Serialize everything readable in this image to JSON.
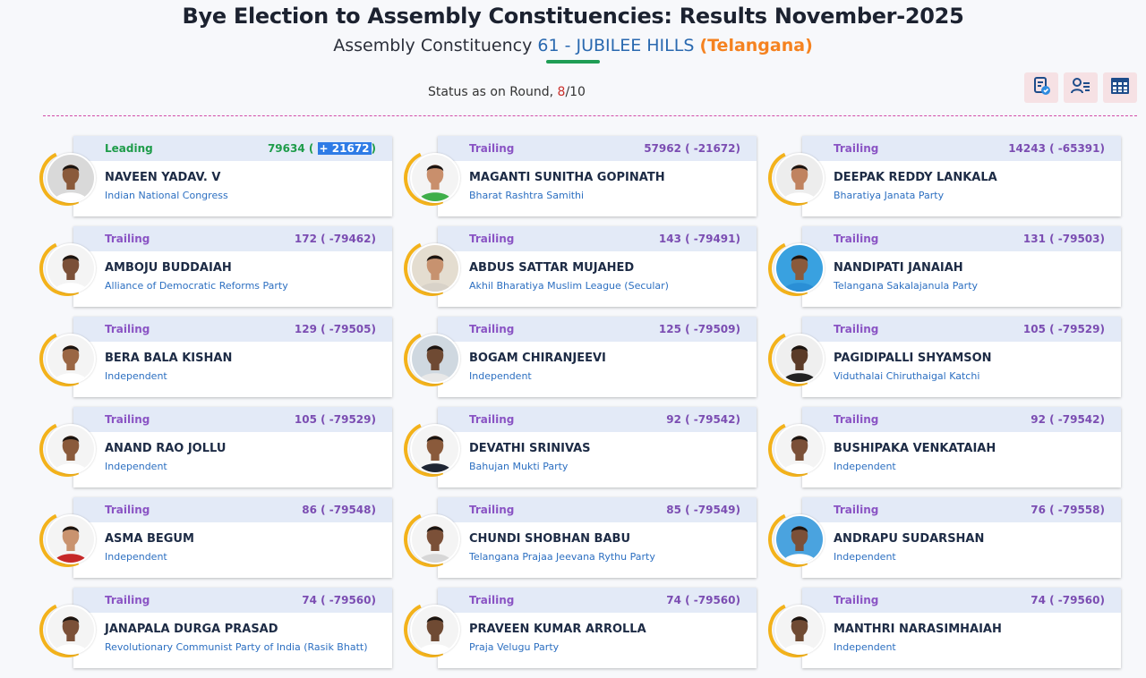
{
  "header": {
    "title": "Bye Election to Assembly Constituencies: Results November-2025",
    "ac_prefix": "Assembly Constituency",
    "ac_name": "61 - JUBILEE HILLS",
    "ac_state": "(Telangana)"
  },
  "status": {
    "prefix": "Status as on Round,",
    "round_current": "8",
    "round_total": "/10"
  },
  "toolbar": {
    "icons": [
      "round-wise-icon",
      "candidate-list-icon",
      "table-view-icon"
    ]
  },
  "candidates": [
    {
      "status": "Leading",
      "votes": "79634",
      "margin": "+ 21672",
      "name": "NAVEEN YADAV. V",
      "party": "Indian National Congress",
      "skin": "#8a5a3b",
      "shirt": "#ffffff",
      "bg": "#d9d9d9"
    },
    {
      "status": "Trailing",
      "votes": "57962",
      "margin": "-21672",
      "name": "MAGANTI SUNITHA GOPINATH",
      "party": "Bharat Rashtra Samithi",
      "skin": "#c98f6c",
      "shirt": "#3fae49",
      "bg": "#f4f4f4"
    },
    {
      "status": "Trailing",
      "votes": "14243",
      "margin": "-65391",
      "name": "DEEPAK REDDY LANKALA",
      "party": "Bharatiya Janata Party",
      "skin": "#c08360",
      "shirt": "#ffffff",
      "bg": "#ededed"
    },
    {
      "status": "Trailing",
      "votes": "172",
      "margin": "-79462",
      "name": "AMBOJU BUDDAIAH",
      "party": "Alliance of Democratic Reforms Party",
      "skin": "#7b5038",
      "shirt": "#ffffff",
      "bg": "#f4f4f4"
    },
    {
      "status": "Trailing",
      "votes": "143",
      "margin": "-79491",
      "name": "ABDUS SATTAR MUJAHED",
      "party": "Akhil Bharatiya Muslim League (Secular)",
      "skin": "#c7926f",
      "shirt": "#d8d2c8",
      "bg": "#e4ddd0"
    },
    {
      "status": "Trailing",
      "votes": "131",
      "margin": "-79503",
      "name": "NANDIPATI JANAIAH",
      "party": "Telangana Sakalajanula Party",
      "skin": "#8a5a3b",
      "shirt": "#2a8fd6",
      "bg": "#39a1e0"
    },
    {
      "status": "Trailing",
      "votes": "129",
      "margin": "-79505",
      "name": "BERA BALA KISHAN",
      "party": "Independent",
      "skin": "#9a6644",
      "shirt": "#ffffff",
      "bg": "#f4f4f4"
    },
    {
      "status": "Trailing",
      "votes": "125",
      "margin": "-79509",
      "name": "BOGAM CHIRANJEEVI",
      "party": "Independent",
      "skin": "#6f4a33",
      "shirt": "#e8e8e8",
      "bg": "#cfd8e0"
    },
    {
      "status": "Trailing",
      "votes": "105",
      "margin": "-79529",
      "name": "PAGIDIPALLI SHYAMSON",
      "party": "Viduthalai Chiruthaigal Katchi",
      "skin": "#5b3b28",
      "shirt": "#222222",
      "bg": "#efefef"
    },
    {
      "status": "Trailing",
      "votes": "105",
      "margin": "-79529",
      "name": "ANAND RAO JOLLU",
      "party": "Independent",
      "skin": "#8a5a3b",
      "shirt": "#ffffff",
      "bg": "#f4f4f4"
    },
    {
      "status": "Trailing",
      "votes": "92",
      "margin": "-79542",
      "name": "DEVATHI SRINIVAS",
      "party": "Bahujan Mukti Party",
      "skin": "#8a5a3b",
      "shirt": "#1e2533",
      "bg": "#f4f4f4"
    },
    {
      "status": "Trailing",
      "votes": "92",
      "margin": "-79542",
      "name": "BUSHIPAKA VENKATAIAH",
      "party": "Independent",
      "skin": "#7b5038",
      "shirt": "#ffffff",
      "bg": "#f4f4f4"
    },
    {
      "status": "Trailing",
      "votes": "86",
      "margin": "-79548",
      "name": "ASMA BEGUM",
      "party": "Independent",
      "skin": "#c9936f",
      "shirt": "#c62828",
      "bg": "#f4f4f4"
    },
    {
      "status": "Trailing",
      "votes": "85",
      "margin": "-79549",
      "name": "CHUNDI SHOBHAN BABU",
      "party": "Telangana Prajaa Jeevana Rythu Party",
      "skin": "#7b5038",
      "shirt": "#d7d7d7",
      "bg": "#f4f4f4"
    },
    {
      "status": "Trailing",
      "votes": "76",
      "margin": "-79558",
      "name": "ANDRAPU SUDARSHAN",
      "party": "Independent",
      "skin": "#7b5038",
      "shirt": "#ffffff",
      "bg": "#4aa3df"
    },
    {
      "status": "Trailing",
      "votes": "74",
      "margin": "-79560",
      "name": "JANAPALA DURGA PRASAD",
      "party": "Revolutionary Communist Party of India (Rasik Bhatt)",
      "skin": "#7b5038",
      "shirt": "#ffffff",
      "bg": "#f4f4f4"
    },
    {
      "status": "Trailing",
      "votes": "74",
      "margin": "-79560",
      "name": "PRAVEEN KUMAR ARROLLA",
      "party": "Praja Velugu Party",
      "skin": "#6f4a33",
      "shirt": "#ffffff",
      "bg": "#f4f4f4"
    },
    {
      "status": "Trailing",
      "votes": "74",
      "margin": "-79560",
      "name": "MANTHRI NARASIMHAIAH",
      "party": "Independent",
      "skin": "#6f4a33",
      "shirt": "#ffffff",
      "bg": "#f4f4f4"
    }
  ]
}
